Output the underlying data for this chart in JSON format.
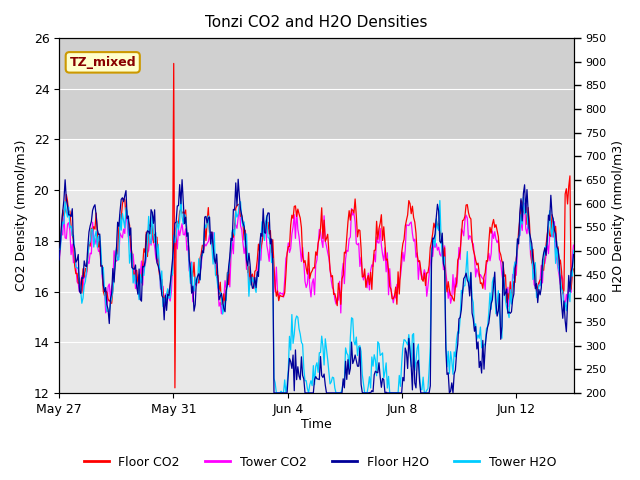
{
  "title": "Tonzi CO2 and H2O Densities",
  "xlabel": "Time",
  "ylabel_left": "CO2 Density (mmol/m3)",
  "ylabel_right": "H2O Density (mmol/m3)",
  "ylim_left": [
    12,
    26
  ],
  "ylim_right": [
    200,
    950
  ],
  "x_tick_labels": [
    "May 27",
    "May 31",
    "Jun 4",
    "Jun 8",
    "Jun 12"
  ],
  "x_tick_pos": [
    0,
    4,
    8,
    12,
    16
  ],
  "yticks_left": [
    12,
    14,
    16,
    18,
    20,
    22,
    24,
    26
  ],
  "yticks_right": [
    200,
    250,
    300,
    350,
    400,
    450,
    500,
    550,
    600,
    650,
    700,
    750,
    800,
    850,
    900,
    950
  ],
  "annotation_text": "TZ_mixed",
  "annotation_text_color": "#880000",
  "annotation_bg": "#ffffcc",
  "annotation_edge_color": "#cc9900",
  "floor_co2_color": "#ff0000",
  "tower_co2_color": "#ff00ff",
  "floor_h2o_color": "#000099",
  "tower_h2o_color": "#00ccff",
  "plot_bg_color": "#e8e8e8",
  "shade_band_color": "#d0d0d0",
  "shade_band_ymin": 22,
  "shade_band_ymax": 26,
  "n_days": 18,
  "seed": 42
}
